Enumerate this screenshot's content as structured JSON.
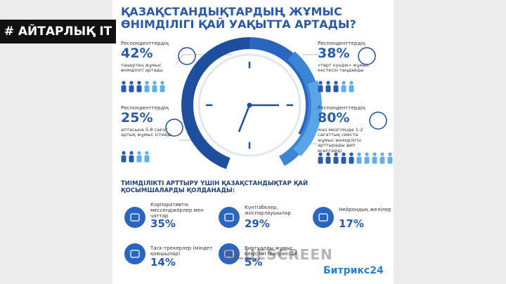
{
  "badge": "# АЙТАРЛЫҚ IT",
  "title": [
    "ҚАЗАҚСТАНДЫҚТАРДЫҢ ЖҰМЫС",
    "ӨНІМДІЛІГІ ҚАЙ УАҚЫТТА АРТАДЫ?"
  ],
  "stats": [
    {
      "label": "Респонденттердің",
      "value": "42%",
      "text": "таңертең жұмыс өнімділігі артады"
    },
    {
      "label": "Респонденттердің",
      "value": "25%",
      "text": "аптасына 5-8 сағат артық жұмыс істейді"
    },
    {
      "label": "Респонденттердің",
      "value": "38%",
      "text": "«төрт күндік» жұмыс кестесін таңдайды"
    },
    {
      "label": "Респонденттердің",
      "value": "80%",
      "text": "жаз мезгілінде 1-2 сағаттық сиеста жұмыс өнімділігін арттырады деп есептейді"
    }
  ],
  "apps_title": "ТИІМДІЛІКТІ АРТТЫРУ ҮШІН ҚАЗАҚСТАНДЫҚТАР ҚАЙ ҚОСЫМШАЛАРДЫ ҚОЛДАНАДЫ:",
  "apps": [
    {
      "name": "Корпоративтік мессенджерлер мен чаттар",
      "value": "35%"
    },
    {
      "name": "Күнтізбелер, жоспарлаушылар",
      "value": "29%"
    },
    {
      "name": "Нейрондық желілер",
      "value": "17%"
    },
    {
      "name": "Таск-трекерлер (міндет қоюшылар)",
      "value": "14%"
    },
    {
      "name": "Виртуалды жұмыс кеңістігі (Битрикс24, Miro)",
      "value": "5%"
    }
  ],
  "logo": "Битрикс24",
  "watermark": "BLUESCREEN"
}
